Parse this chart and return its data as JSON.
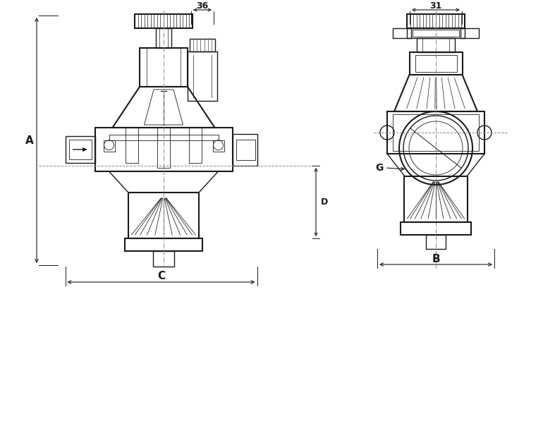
{
  "bg_color": "#ffffff",
  "line_color": "#1a1a1a",
  "dim_color": "#1a1a1a",
  "gray_line": "#888888",
  "figsize": [
    7.7,
    5.97
  ],
  "dpi": 100,
  "dim_36": "36",
  "dim_31": "31",
  "dim_A": "A",
  "dim_B": "B",
  "dim_C": "C",
  "dim_D": "D",
  "dim_G": "G"
}
